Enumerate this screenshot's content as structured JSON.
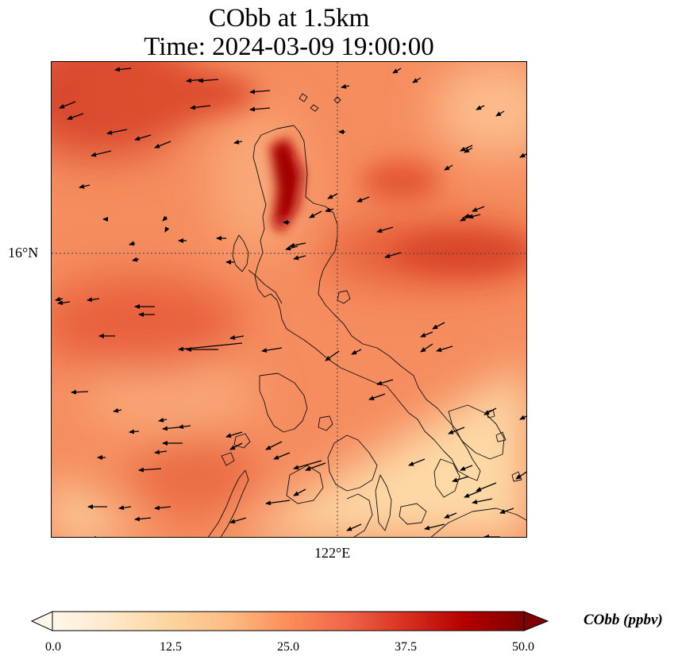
{
  "title": {
    "line1": "CObb at 1.5km",
    "line2": "Time: 2024-03-09 19:00:00"
  },
  "map": {
    "lat_label": "16°N",
    "lon_label": "122°E",
    "field_colors": {
      "base": "#f58d5f",
      "high": "#c4160f",
      "peak": "#9e0000",
      "low": "#fdd9a6",
      "min": "#fff1dc"
    }
  },
  "colorbar": {
    "title": "CObb (ppbv)",
    "min": 0.0,
    "max": 50.0,
    "extend": "both",
    "tick_labels": [
      "0.0",
      "12.5",
      "25.0",
      "37.5",
      "50.0"
    ],
    "colors": [
      "#fff7ec",
      "#fee8c8",
      "#fdd49e",
      "#fdbb84",
      "#fc8d59",
      "#ef6548",
      "#d7301f",
      "#b30000",
      "#7f0000"
    ]
  }
}
